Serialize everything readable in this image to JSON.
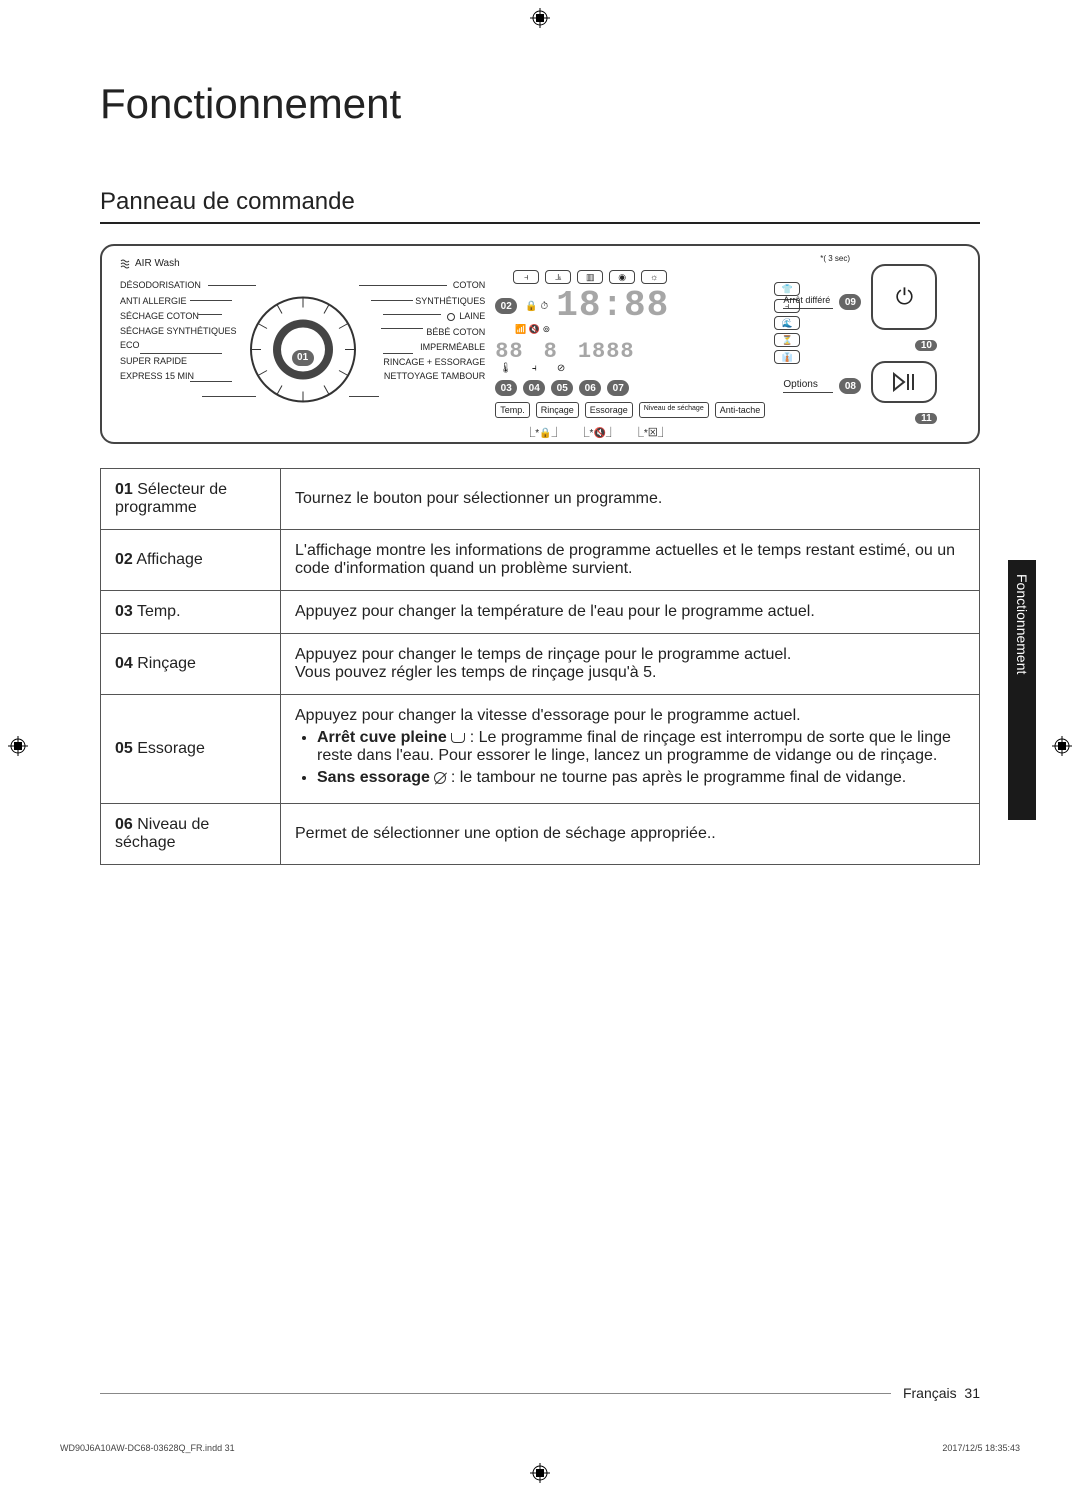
{
  "page": {
    "title": "Fonctionnement",
    "subtitle": "Panneau de commande",
    "side_tab": "Fonctionnement",
    "footer_lang": "Français",
    "footer_page": "31",
    "indd": "WD90J6A10AW-DC68-03628Q_FR.indd   31",
    "timestamp": "2017/12/5   18:35:43"
  },
  "panel": {
    "airwash": "AIR Wash",
    "left_labels": [
      "DÉSODORISATION",
      "ANTI ALLERGIE",
      "SÉCHAGE COTON",
      "SÉCHAGE SYNTHÉTIQUES",
      "ECO",
      "SUPER RAPIDE",
      "EXPRESS 15 MIN"
    ],
    "right_labels": [
      "COTON",
      "SYNTHÉTIQUES",
      "LAINE",
      "BÉBÉ COTON",
      "IMPERMÉABLE",
      "RINCAGE + ESSORAGE",
      "NETTOYAGE TAMBOUR"
    ],
    "badge_01": "01",
    "badge_02": "02",
    "badge_03": "03",
    "badge_04": "04",
    "badge_05": "05",
    "badge_06": "06",
    "badge_07": "07",
    "badge_08": "08",
    "badge_09": "09",
    "badge_10": "10",
    "badge_11": "11",
    "sec_note": "*( 3 sec)",
    "arret_differe": "Arrêt différé",
    "options": "Options",
    "bottom_cells": [
      "Temp.",
      "Rinçage",
      "Essorage",
      "Niveau de séchage",
      "Anti-tache"
    ],
    "seg_time": "18:88",
    "seg_small": [
      "88",
      "8",
      "1888"
    ]
  },
  "rows": [
    {
      "num": "01",
      "label": "Sélecteur de programme",
      "body": "Tournez le bouton pour sélectionner un programme."
    },
    {
      "num": "02",
      "label": "Affichage",
      "body": "L'affichage montre les informations de programme actuelles et le temps restant estimé, ou un code d'information quand un problème survient."
    },
    {
      "num": "03",
      "label": "Temp.",
      "body": "Appuyez pour changer la température de l'eau pour le programme actuel."
    },
    {
      "num": "04",
      "label": "Rinçage",
      "body": "Appuyez pour changer le temps de rinçage pour le programme actuel.\nVous pouvez régler les temps de rinçage jusqu'à 5."
    },
    {
      "num": "05",
      "label": "Essorage",
      "body": "Appuyez pour changer la vitesse d'essorage pour le programme actuel.",
      "bullets": [
        {
          "lead": "Arrêt cuve pleine",
          "icon": "tub",
          "text": " : Le programme final de rinçage est interrompu de sorte que le linge reste dans l'eau. Pour essorer le linge, lancez un programme de vidange ou de rinçage."
        },
        {
          "lead": "Sans essorage",
          "icon": "nospin",
          "text": " : le tambour ne tourne pas après le programme final de vidange."
        }
      ]
    },
    {
      "num": "06",
      "label": "Niveau de séchage",
      "body": "Permet de sélectionner une option de séchage appropriée.."
    }
  ]
}
